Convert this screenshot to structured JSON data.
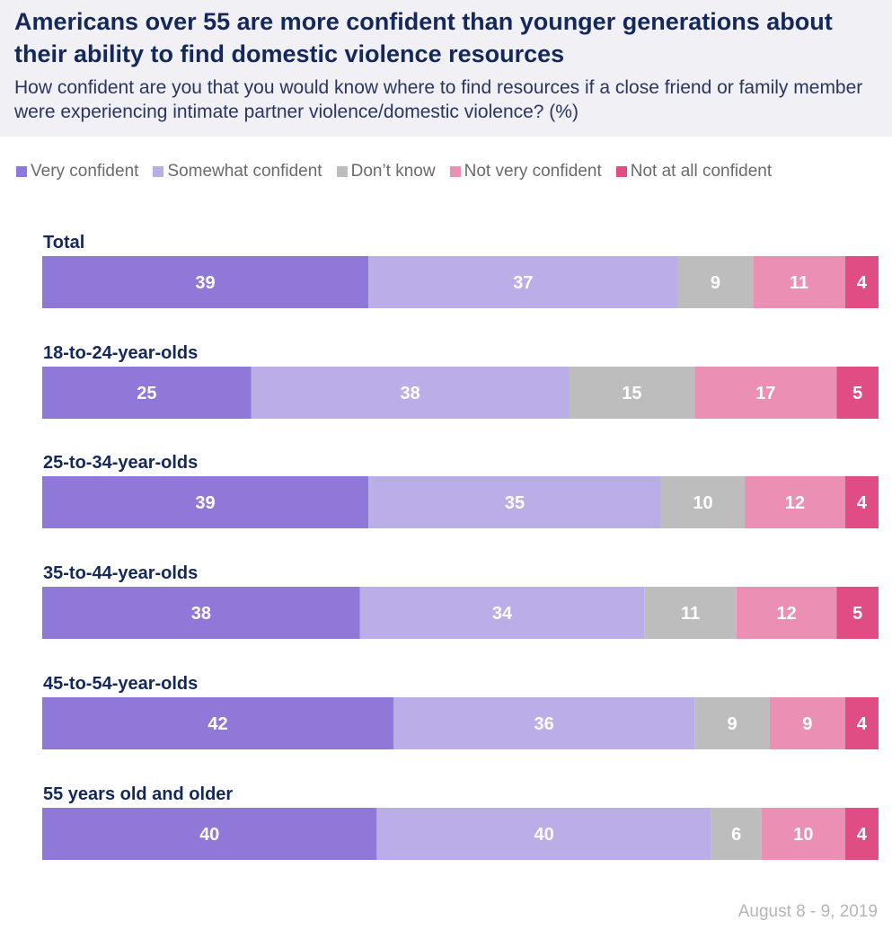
{
  "title": "Americans over 55 are more confident than younger generations about their ability to find domestic violence resources",
  "subtitle": "How confident are you that you would know where to find resources if a close friend or family member were experiencing intimate partner violence/domestic violence? (%)",
  "footer": "August 8 - 9, 2019",
  "colors": {
    "very_confident": "#9078d8",
    "somewhat_confident": "#bbaee8",
    "dont_know": "#bdbdbd",
    "not_very_confident": "#eb90b4",
    "not_at_all_confident": "#e04d84",
    "title": "#15285b"
  },
  "chart_data": {
    "type": "bar",
    "orientation": "horizontal-stacked-100",
    "xlim": [
      0,
      100
    ],
    "legend_position": "top",
    "grid": false,
    "categories": [
      "Total",
      "18-to-24-year-olds",
      "25-to-34-year-olds",
      "35-to-44-year-olds",
      "45-to-54-year-olds",
      "55 years old and older"
    ],
    "series": [
      {
        "name": "Very confident",
        "color": "#9078d8",
        "values": [
          39,
          25,
          39,
          38,
          42,
          40
        ]
      },
      {
        "name": "Somewhat confident",
        "color": "#bbaee8",
        "values": [
          37,
          38,
          35,
          34,
          36,
          40
        ]
      },
      {
        "name": "Don’t know",
        "color": "#bdbdbd",
        "values": [
          9,
          15,
          10,
          11,
          9,
          6
        ]
      },
      {
        "name": "Not very confident",
        "color": "#eb90b4",
        "values": [
          11,
          17,
          12,
          12,
          9,
          10
        ]
      },
      {
        "name": "Not at all confident",
        "color": "#e04d84",
        "values": [
          4,
          5,
          4,
          5,
          4,
          4
        ]
      }
    ]
  }
}
